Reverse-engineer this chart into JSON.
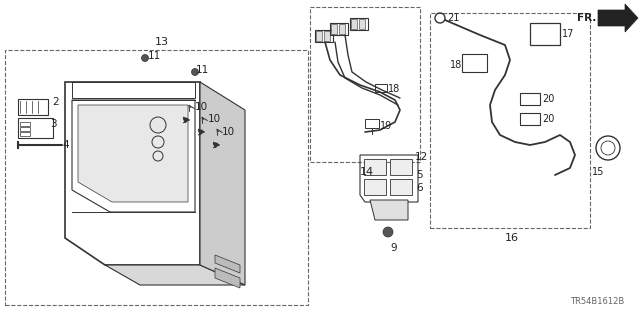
{
  "part_code": "TR54B1612B",
  "bg_color": "#ffffff",
  "lc": "#333333",
  "lc_light": "#888888",
  "figsize": [
    6.4,
    3.2
  ],
  "dpi": 100
}
